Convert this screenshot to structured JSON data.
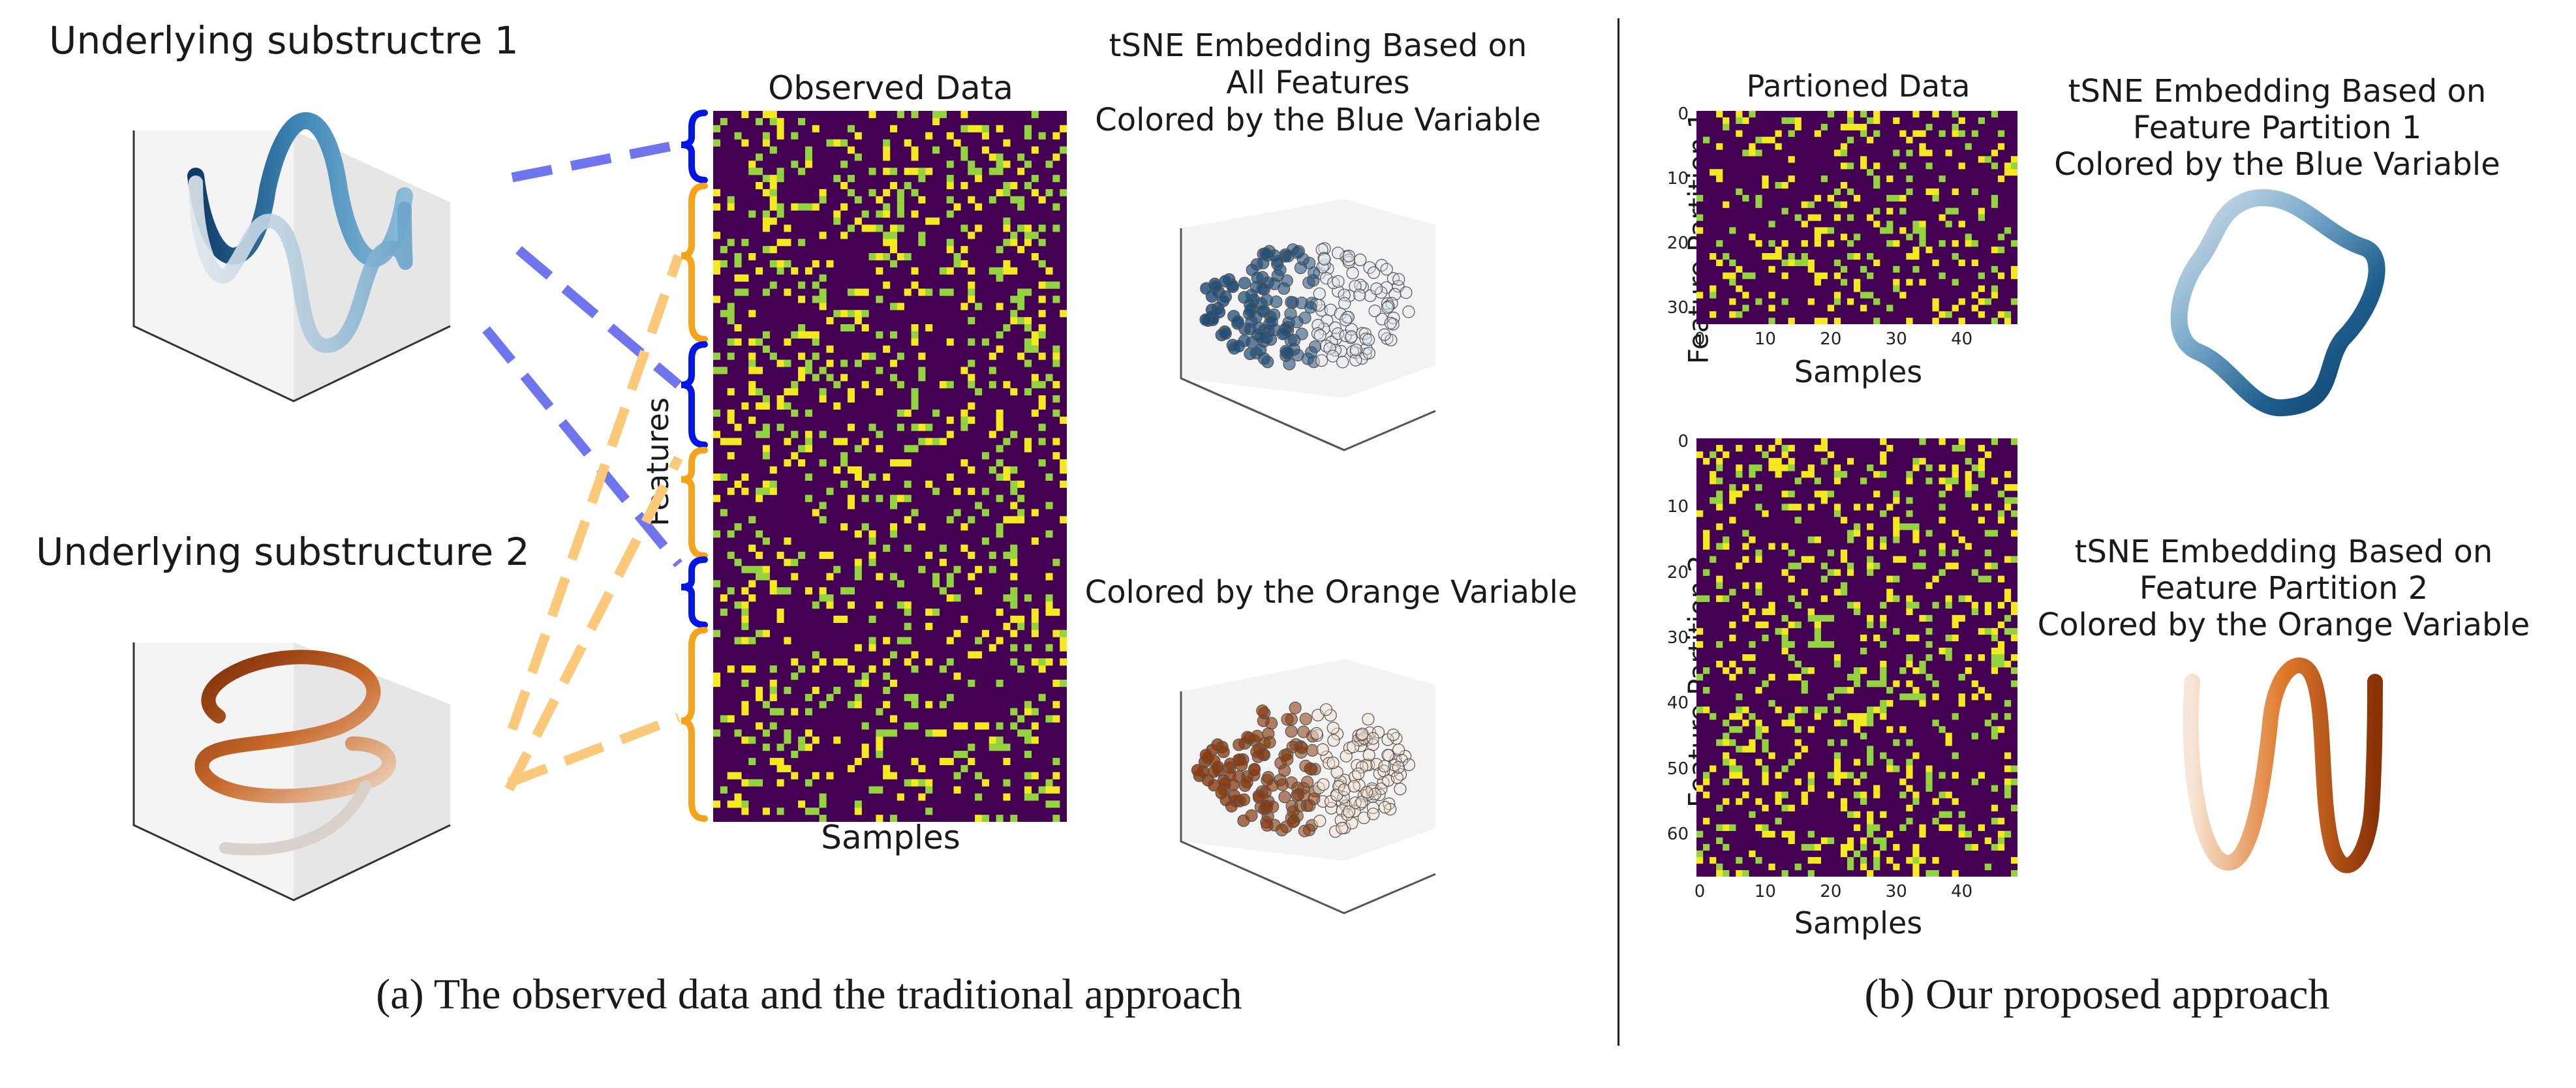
{
  "colors": {
    "blue_var": "#1f4e79",
    "orange_var": "#b34a0c",
    "brace_blue": "#0015e6",
    "brace_orange": "#f5a31a",
    "dash_blue": "#6f75ee",
    "dash_orange": "#fcc97a",
    "heat_bg": "#440154",
    "heat_green": "#93d33f",
    "heat_yellow": "#f2e91e"
  },
  "panel_a": {
    "substructure1_title": "Underlying substructre 1",
    "substructure2_title": "Underlying substructure 2",
    "observed_title": "Observed Data",
    "features_label": "Features",
    "samples_label": "Samples",
    "tsne_title_line1": "tSNE Embedding Based on",
    "tsne_title_line2": "All Features",
    "tsne_title_line3": "Colored by the Blue Variable",
    "tsne_orange_title": "Colored by the Orange Variable",
    "caption": "(a)  The observed data and the traditional approach"
  },
  "panel_b": {
    "partitioned_title": "Partioned Data",
    "partition1_label": "Feature Partition 1",
    "partition2_label": "Feature Partition 2",
    "samples_label1": "Samples",
    "samples_label2": "Samples",
    "p1_yticks": [
      "0",
      "10",
      "20",
      "30"
    ],
    "p2_yticks": [
      "0",
      "10",
      "20",
      "30",
      "40",
      "50",
      "60"
    ],
    "xticks": [
      "0",
      "10",
      "20",
      "30",
      "40"
    ],
    "tsne1_line1": "tSNE Embedding Based on",
    "tsne1_line2": "Feature Partition 1",
    "tsne1_line3": "Colored by the Blue Variable",
    "tsne2_line1": "tSNE Embedding Based on",
    "tsne2_line2": "Feature Partition 2",
    "tsne2_line3": "Colored by the Orange Variable",
    "caption": "(b)  Our proposed approach"
  }
}
